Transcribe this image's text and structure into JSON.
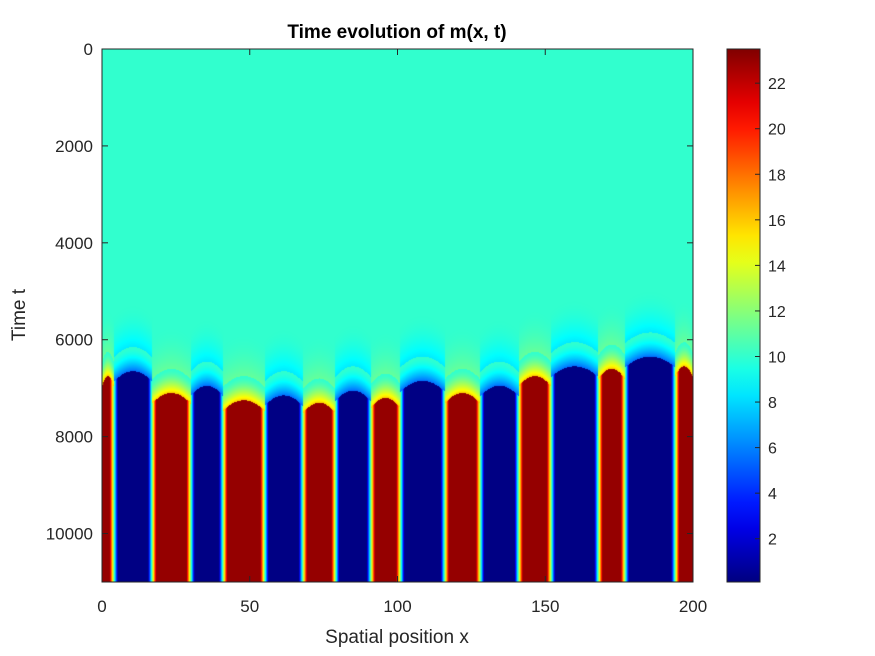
{
  "chart_data": {
    "type": "heatmap",
    "title": "Time evolution of m(x, t)",
    "xlabel": "Spatial position x",
    "ylabel": "Time t",
    "xlim": [
      0,
      200
    ],
    "ylim": [
      0,
      11000
    ],
    "y_direction": "reversed",
    "x_ticks": [
      "0",
      "50",
      "100",
      "150",
      "200"
    ],
    "x_tick_values": [
      0,
      50,
      100,
      150,
      200
    ],
    "y_ticks": [
      "0",
      "2000",
      "4000",
      "6000",
      "8000",
      "10000"
    ],
    "y_tick_values": [
      0,
      2000,
      4000,
      6000,
      8000,
      10000
    ],
    "colormap": "jet",
    "clim": [
      0.1,
      23.5
    ],
    "colorbar": {
      "ticks": [
        "2",
        "4",
        "6",
        "8",
        "10",
        "12",
        "14",
        "16",
        "18",
        "20",
        "22"
      ],
      "tick_values": [
        2,
        4,
        6,
        8,
        10,
        12,
        14,
        16,
        18,
        20,
        22
      ],
      "location": "right"
    },
    "initial_uniform_value": 10,
    "high_value": 23,
    "low_value": 0.2,
    "stripes": [
      {
        "state": "high",
        "x_start": 0,
        "x_end": 4,
        "onset_t": 6750
      },
      {
        "state": "low",
        "x_start": 4,
        "x_end": 17,
        "onset_t": 6650
      },
      {
        "state": "high",
        "x_start": 17,
        "x_end": 30,
        "onset_t": 7100
      },
      {
        "state": "low",
        "x_start": 30,
        "x_end": 41,
        "onset_t": 6950
      },
      {
        "state": "high",
        "x_start": 41,
        "x_end": 55,
        "onset_t": 7250
      },
      {
        "state": "low",
        "x_start": 55,
        "x_end": 68,
        "onset_t": 7150
      },
      {
        "state": "high",
        "x_start": 68,
        "x_end": 79,
        "onset_t": 7300
      },
      {
        "state": "low",
        "x_start": 79,
        "x_end": 91,
        "onset_t": 7050
      },
      {
        "state": "high",
        "x_start": 91,
        "x_end": 101,
        "onset_t": 7200
      },
      {
        "state": "low",
        "x_start": 101,
        "x_end": 116,
        "onset_t": 6850
      },
      {
        "state": "high",
        "x_start": 116,
        "x_end": 128,
        "onset_t": 7100
      },
      {
        "state": "low",
        "x_start": 128,
        "x_end": 141,
        "onset_t": 6950
      },
      {
        "state": "high",
        "x_start": 141,
        "x_end": 152,
        "onset_t": 6750
      },
      {
        "state": "low",
        "x_start": 152,
        "x_end": 168,
        "onset_t": 6550
      },
      {
        "state": "high",
        "x_start": 168,
        "x_end": 177,
        "onset_t": 6600
      },
      {
        "state": "low",
        "x_start": 177,
        "x_end": 194,
        "onset_t": 6350
      },
      {
        "state": "high",
        "x_start": 194,
        "x_end": 200,
        "onset_t": 6550
      }
    ]
  }
}
